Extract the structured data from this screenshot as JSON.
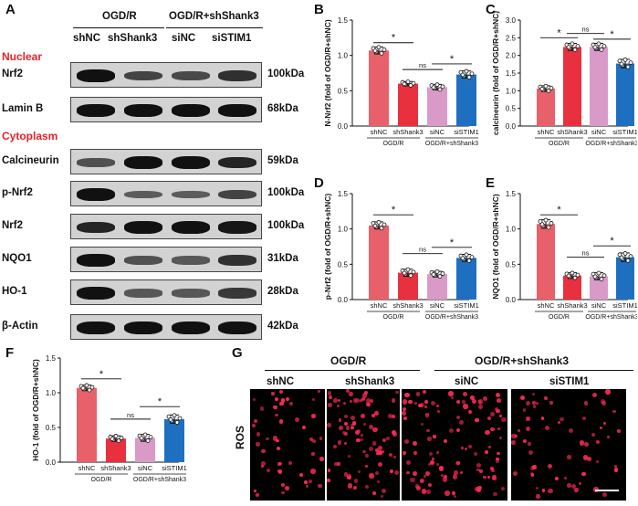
{
  "panels": {
    "A": "A",
    "B": "B",
    "C": "C",
    "D": "D",
    "E": "E",
    "F": "F",
    "G": "G"
  },
  "western": {
    "group_ogdr": "OGD/R",
    "group_ogdr_sh": "OGD/R+shShank3",
    "lanes": [
      "shNC",
      "shShank3",
      "siNC",
      "siSTIM1"
    ],
    "section_nuclear": "Nuclear",
    "section_cytoplasm": "Cytoplasm",
    "colors": {
      "section_label": "#e8202a"
    },
    "rows": [
      {
        "protein": "Nrf2",
        "kda": "100kDa",
        "intensity": [
          1.0,
          0.6,
          0.55,
          0.75
        ]
      },
      {
        "protein": "Lamin B",
        "kda": "68kDa",
        "intensity": [
          1.0,
          1.0,
          1.0,
          1.0
        ]
      },
      {
        "protein": "Calcineurin",
        "kda": "59kDa",
        "intensity": [
          0.5,
          1.0,
          1.0,
          0.85
        ]
      },
      {
        "protein": "p-Nrf2",
        "kda": "100kDa",
        "intensity": [
          1.0,
          0.4,
          0.4,
          0.6
        ]
      },
      {
        "protein": "Nrf2",
        "kda": "100kDa",
        "intensity": [
          0.85,
          1.0,
          1.0,
          0.95
        ]
      },
      {
        "protein": "NQO1",
        "kda": "31kDa",
        "intensity": [
          1.0,
          0.5,
          0.45,
          0.75
        ]
      },
      {
        "protein": "HO-1",
        "kda": "28kDa",
        "intensity": [
          1.0,
          0.45,
          0.45,
          0.7
        ]
      },
      {
        "protein": "β-Actin",
        "kda": "42kDa",
        "intensity": [
          1.0,
          1.0,
          1.0,
          1.0
        ]
      }
    ]
  },
  "chart_data": [
    {
      "id": "B",
      "type": "bar",
      "categories": [
        "shNC",
        "shShank3",
        "siNC",
        "siSTIM1"
      ],
      "values": [
        1.07,
        0.6,
        0.55,
        0.73
      ],
      "errors": [
        0.05,
        0.03,
        0.04,
        0.05
      ],
      "ylabel": "N-Nrf2 (fold of OGD/R+shNC)",
      "ylim": [
        0,
        1.5
      ],
      "yticks": [
        "0.0",
        "0.5",
        "1.0",
        "1.5"
      ],
      "group_labels": [
        "OGD/R",
        "OGD/R+shShank3"
      ],
      "comparisons": [
        {
          "from": 0,
          "to": 1,
          "label": "*",
          "level": 1.18
        },
        {
          "from": 1,
          "to": 2,
          "label": "ns",
          "level": 0.8
        },
        {
          "from": 2,
          "to": 3,
          "label": "*",
          "level": 0.88
        }
      ]
    },
    {
      "id": "C",
      "type": "bar",
      "categories": [
        "shNC",
        "shShank3",
        "siNC",
        "siSTIM1"
      ],
      "values": [
        1.06,
        2.24,
        2.24,
        1.77
      ],
      "errors": [
        0.08,
        0.1,
        0.1,
        0.12
      ],
      "ylabel": "calcineurin (fold of OGD/R+shNC)",
      "ylim": [
        0,
        3.0
      ],
      "yticks": [
        "0.0",
        "0.5",
        "1.0",
        "1.5",
        "2.0",
        "2.5",
        "3.0"
      ],
      "group_labels": [
        "OGD/R",
        "OGD/R+shShank3"
      ],
      "comparisons": [
        {
          "from": 0,
          "to": 1,
          "label": "*",
          "level": 2.5
        },
        {
          "from": 1,
          "to": 2,
          "label": "ns",
          "level": 2.62
        },
        {
          "from": 2,
          "to": 3,
          "label": "*",
          "level": 2.46
        }
      ]
    },
    {
      "id": "D",
      "type": "bar",
      "categories": [
        "shNC",
        "shShank3",
        "siNC",
        "siSTIM1"
      ],
      "values": [
        1.05,
        0.38,
        0.36,
        0.59
      ],
      "errors": [
        0.05,
        0.05,
        0.04,
        0.05
      ],
      "ylabel": "p-Nrf2 (fold of OGD/R+shNC)",
      "ylim": [
        0,
        1.5
      ],
      "yticks": [
        "0.0",
        "0.5",
        "1.0",
        "1.5"
      ],
      "group_labels": [
        "OGD/R",
        "OGD/R+shShank3"
      ],
      "comparisons": [
        {
          "from": 0,
          "to": 1,
          "label": "*",
          "level": 1.2
        },
        {
          "from": 1,
          "to": 2,
          "label": "ns",
          "level": 0.65
        },
        {
          "from": 2,
          "to": 3,
          "label": "*",
          "level": 0.74
        }
      ]
    },
    {
      "id": "E",
      "type": "bar",
      "categories": [
        "shNC",
        "shShank3",
        "siNC",
        "siSTIM1"
      ],
      "values": [
        1.07,
        0.34,
        0.33,
        0.6
      ],
      "errors": [
        0.06,
        0.04,
        0.05,
        0.06
      ],
      "ylabel": "NQO1 (fold of OGD/R+shNC)",
      "ylim": [
        0,
        1.5
      ],
      "yticks": [
        "0.0",
        "0.5",
        "1.0",
        "1.5"
      ],
      "group_labels": [
        "OGD/R",
        "OGD/R+shShank3"
      ],
      "comparisons": [
        {
          "from": 0,
          "to": 1,
          "label": "*",
          "level": 1.2
        },
        {
          "from": 1,
          "to": 2,
          "label": "ns",
          "level": 0.6
        },
        {
          "from": 2,
          "to": 3,
          "label": "*",
          "level": 0.76
        }
      ]
    },
    {
      "id": "F",
      "type": "bar",
      "categories": [
        "shNC",
        "shShank3",
        "siNC",
        "siSTIM1"
      ],
      "values": [
        1.07,
        0.34,
        0.35,
        0.62
      ],
      "errors": [
        0.04,
        0.04,
        0.05,
        0.06
      ],
      "ylabel": "HO-1 (fold of OGD/R+shNC)",
      "ylim": [
        0,
        1.5
      ],
      "yticks": [
        "0.0",
        "0.5",
        "1.0",
        "1.5"
      ],
      "group_labels": [
        "OGD/R",
        "OGD/R+shShank3"
      ],
      "comparisons": [
        {
          "from": 0,
          "to": 1,
          "label": "*",
          "level": 1.2
        },
        {
          "from": 1,
          "to": 2,
          "label": "ns",
          "level": 0.62
        },
        {
          "from": 2,
          "to": 3,
          "label": "*",
          "level": 0.8
        }
      ]
    }
  ],
  "bar_colors": [
    "#e8606a",
    "#e8303e",
    "#d99ac8",
    "#1f6fc0"
  ],
  "fluorescence": {
    "group_ogdr": "OGD/R",
    "group_ogdr_sh": "OGD/R+shShank3",
    "lanes": [
      "shNC",
      "shShank3",
      "siNC",
      "siSTIM1"
    ],
    "row_label": "ROS",
    "density": [
      0.55,
      1.0,
      0.85,
      0.45
    ],
    "colors": {
      "cell": "#ff2a55",
      "background": "#000000"
    }
  }
}
